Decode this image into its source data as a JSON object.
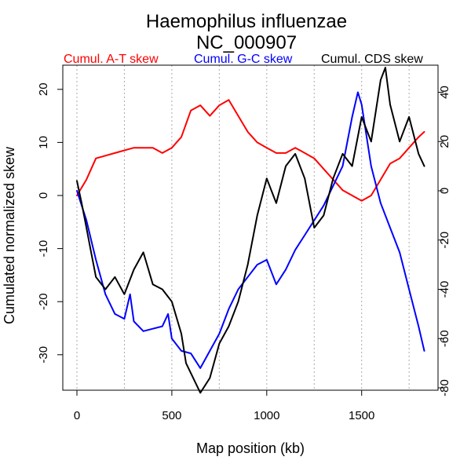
{
  "chart_data": {
    "type": "line",
    "title": "Haemophilus influenzae",
    "subtitle": "NC_000907",
    "xlabel": "Map position (kb)",
    "ylabel": "Cumulated normalized skew",
    "xlim": [
      0,
      1830
    ],
    "ylim": [
      -35,
      22
    ],
    "y2lim": [
      -80,
      45
    ],
    "x_ticks": [
      0,
      500,
      1000,
      1500
    ],
    "y_ticks": [
      20,
      10,
      0,
      -10,
      -20,
      -30
    ],
    "y2_ticks": [
      40,
      20,
      0,
      -20,
      -40,
      -60,
      -80
    ],
    "grid": {
      "vertical_dotted_x": [
        0,
        250,
        500,
        750,
        1000,
        1250,
        1500,
        1750
      ]
    },
    "legend_placement": "top-center",
    "series": [
      {
        "name": "Cumul. A-T skew",
        "color": "#ff0000",
        "axis": "left",
        "x": [
          0,
          50,
          100,
          200,
          300,
          400,
          450,
          500,
          550,
          600,
          650,
          700,
          750,
          800,
          850,
          900,
          950,
          1000,
          1050,
          1100,
          1150,
          1200,
          1250,
          1300,
          1350,
          1400,
          1450,
          1500,
          1550,
          1600,
          1650,
          1700,
          1750,
          1800,
          1830
        ],
        "values": [
          0,
          3,
          7,
          8,
          9,
          9,
          8,
          9,
          11,
          16,
          17,
          15,
          17,
          18,
          15,
          12,
          10,
          9,
          8,
          8,
          9,
          8,
          7,
          5,
          3,
          1,
          0,
          -1,
          0,
          3,
          6,
          7,
          9,
          11,
          12
        ]
      },
      {
        "name": "Cumul. G-C skew",
        "color": "#0000ff",
        "axis": "right",
        "x": [
          0,
          50,
          100,
          150,
          200,
          250,
          280,
          300,
          350,
          400,
          450,
          480,
          500,
          550,
          600,
          650,
          700,
          750,
          800,
          850,
          900,
          950,
          1000,
          1050,
          1100,
          1150,
          1200,
          1250,
          1300,
          1350,
          1400,
          1450,
          1480,
          1500,
          1550,
          1600,
          1650,
          1700,
          1750,
          1800,
          1830
        ],
        "values": [
          0,
          -12,
          -28,
          -42,
          -50,
          -52,
          -42,
          -53,
          -57,
          -56,
          -55,
          -50,
          -60,
          -65,
          -66,
          -72,
          -65,
          -58,
          -48,
          -40,
          -35,
          -30,
          -28,
          -38,
          -32,
          -24,
          -18,
          -12,
          -6,
          2,
          10,
          30,
          40,
          35,
          10,
          -5,
          -15,
          -25,
          -40,
          -55,
          -65
        ]
      },
      {
        "name": "Cumul. CDS skew",
        "color": "#000000",
        "axis": "right",
        "x": [
          0,
          25,
          50,
          75,
          100,
          150,
          200,
          250,
          300,
          350,
          400,
          450,
          500,
          550,
          575,
          600,
          650,
          700,
          750,
          800,
          850,
          900,
          950,
          1000,
          1050,
          1100,
          1150,
          1200,
          1250,
          1300,
          1350,
          1400,
          1450,
          1500,
          1550,
          1600,
          1625,
          1650,
          1700,
          1750,
          1800,
          1830
        ],
        "values": [
          4,
          -5,
          -15,
          -25,
          -35,
          -40,
          -35,
          -42,
          -32,
          -25,
          -38,
          -40,
          -45,
          -58,
          -70,
          -74,
          -82,
          -76,
          -62,
          -55,
          -45,
          -30,
          -10,
          5,
          -5,
          10,
          15,
          5,
          -15,
          -10,
          5,
          15,
          10,
          30,
          20,
          45,
          50,
          35,
          20,
          30,
          15,
          10
        ]
      }
    ]
  }
}
